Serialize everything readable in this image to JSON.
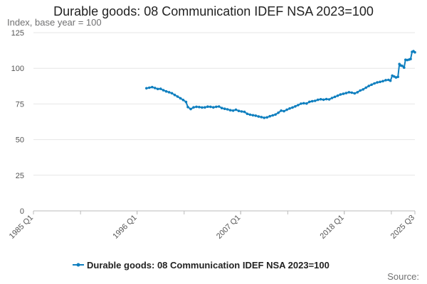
{
  "chart_data": {
    "type": "line",
    "title": "Durable goods: 08 Communication IDEF NSA 2023=100",
    "subtitle": "Index, base year = 100",
    "source": "Source:",
    "xlabel": "",
    "ylabel": "",
    "x_ticks": [
      "1985 Q1",
      "1996 Q1",
      "2007 Q1",
      "2018 Q1",
      "2025 Q3"
    ],
    "y_ticks": [
      0,
      25,
      50,
      75,
      100,
      125
    ],
    "ylim": [
      0,
      125
    ],
    "xlim": [
      1985.0,
      2025.5
    ],
    "grid": "horizontal",
    "legend": "bottom-center",
    "series": [
      {
        "name": "Durable goods: 08 Communication IDEF NSA 2023=100",
        "color": "#0f7fbf",
        "points": [
          [
            1997.0,
            86.0
          ],
          [
            1997.3,
            86.4
          ],
          [
            1997.6,
            86.8
          ],
          [
            1997.9,
            86.2
          ],
          [
            1998.2,
            85.5
          ],
          [
            1998.5,
            85.6
          ],
          [
            1998.8,
            84.6
          ],
          [
            1999.1,
            83.8
          ],
          [
            1999.4,
            83.2
          ],
          [
            1999.7,
            82.5
          ],
          [
            2000.0,
            81.3
          ],
          [
            2000.3,
            80.2
          ],
          [
            2000.6,
            79.0
          ],
          [
            2000.9,
            77.8
          ],
          [
            2001.2,
            76.4
          ],
          [
            2001.4,
            72.8
          ],
          [
            2001.7,
            71.4
          ],
          [
            2002.0,
            72.6
          ],
          [
            2002.3,
            73.0
          ],
          [
            2002.6,
            72.8
          ],
          [
            2002.9,
            72.5
          ],
          [
            2003.2,
            72.6
          ],
          [
            2003.5,
            73.1
          ],
          [
            2003.8,
            73.0
          ],
          [
            2004.1,
            72.6
          ],
          [
            2004.4,
            73.0
          ],
          [
            2004.7,
            73.2
          ],
          [
            2005.0,
            72.1
          ],
          [
            2005.3,
            71.6
          ],
          [
            2005.6,
            71.2
          ],
          [
            2005.9,
            70.6
          ],
          [
            2006.2,
            70.3
          ],
          [
            2006.5,
            70.9
          ],
          [
            2006.8,
            70.1
          ],
          [
            2007.1,
            69.7
          ],
          [
            2007.4,
            69.4
          ],
          [
            2007.7,
            68.1
          ],
          [
            2008.0,
            67.5
          ],
          [
            2008.3,
            67.1
          ],
          [
            2008.6,
            66.8
          ],
          [
            2008.9,
            66.2
          ],
          [
            2009.2,
            65.8
          ],
          [
            2009.5,
            65.3
          ],
          [
            2009.8,
            65.6
          ],
          [
            2010.1,
            66.4
          ],
          [
            2010.4,
            67.0
          ],
          [
            2010.7,
            67.6
          ],
          [
            2011.0,
            68.8
          ],
          [
            2011.3,
            70.3
          ],
          [
            2011.6,
            69.9
          ],
          [
            2011.9,
            70.9
          ],
          [
            2012.2,
            71.8
          ],
          [
            2012.5,
            72.5
          ],
          [
            2012.8,
            73.3
          ],
          [
            2013.1,
            74.2
          ],
          [
            2013.4,
            75.2
          ],
          [
            2013.7,
            75.5
          ],
          [
            2014.0,
            75.3
          ],
          [
            2014.3,
            76.5
          ],
          [
            2014.6,
            76.9
          ],
          [
            2014.9,
            77.2
          ],
          [
            2015.2,
            77.9
          ],
          [
            2015.5,
            78.3
          ],
          [
            2015.8,
            78.0
          ],
          [
            2016.1,
            78.4
          ],
          [
            2016.4,
            78.2
          ],
          [
            2016.7,
            79.2
          ],
          [
            2017.0,
            80.0
          ],
          [
            2017.3,
            80.8
          ],
          [
            2017.6,
            81.6
          ],
          [
            2017.9,
            82.1
          ],
          [
            2018.2,
            82.6
          ],
          [
            2018.5,
            83.2
          ],
          [
            2018.8,
            82.9
          ],
          [
            2019.1,
            82.4
          ],
          [
            2019.4,
            83.2
          ],
          [
            2019.7,
            84.4
          ],
          [
            2020.0,
            85.2
          ],
          [
            2020.3,
            86.4
          ],
          [
            2020.6,
            87.6
          ],
          [
            2020.9,
            88.5
          ],
          [
            2021.2,
            89.4
          ],
          [
            2021.5,
            90.1
          ],
          [
            2021.8,
            90.5
          ],
          [
            2022.1,
            91.0
          ],
          [
            2022.4,
            91.7
          ],
          [
            2022.7,
            91.9
          ],
          [
            2022.9,
            91.3
          ],
          [
            2023.1,
            94.8
          ],
          [
            2023.3,
            94.2
          ],
          [
            2023.5,
            93.6
          ],
          [
            2023.7,
            94.0
          ],
          [
            2023.85,
            103.0
          ],
          [
            2024.0,
            102.0
          ],
          [
            2024.15,
            101.7
          ],
          [
            2024.35,
            100.5
          ],
          [
            2024.5,
            106.0
          ],
          [
            2024.7,
            105.8
          ],
          [
            2024.9,
            106.2
          ],
          [
            2025.05,
            106.5
          ],
          [
            2025.2,
            111.5
          ],
          [
            2025.35,
            112.0
          ],
          [
            2025.5,
            111.2
          ]
        ]
      }
    ]
  }
}
